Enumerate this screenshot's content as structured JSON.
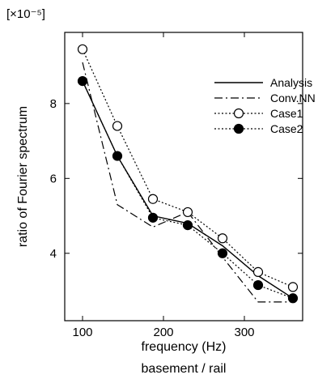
{
  "chart_data": {
    "type": "line",
    "scale_label": "[×10⁻⁵]",
    "xlabel": "frequency (Hz)",
    "ylabel": "ratio of Fourier spectrum",
    "caption": "basement / rail",
    "xlim": [
      78,
      372
    ],
    "ylim": [
      2.2,
      9.9
    ],
    "xticks": [
      100,
      200,
      300
    ],
    "yticks": [
      4,
      6,
      8
    ],
    "grid": false,
    "legend_position": "top-right",
    "series": [
      {
        "name": "Analysis",
        "style": "solid",
        "marker": "none",
        "x": [
          100,
          143,
          187,
          230,
          273,
          317,
          360
        ],
        "y": [
          8.6,
          6.6,
          5.0,
          4.8,
          4.2,
          3.4,
          2.8
        ]
      },
      {
        "name": "Conv.NN",
        "style": "dashdot",
        "marker": "none",
        "x": [
          100,
          143,
          187,
          230,
          273,
          317,
          360
        ],
        "y": [
          9.1,
          5.3,
          4.7,
          5.1,
          3.9,
          2.7,
          2.7
        ]
      },
      {
        "name": "Case1",
        "style": "dotted",
        "marker": "open-circle",
        "x": [
          100,
          143,
          187,
          230,
          273,
          317,
          360
        ],
        "y": [
          9.45,
          7.4,
          5.45,
          5.1,
          4.4,
          3.5,
          3.1
        ]
      },
      {
        "name": "Case2",
        "style": "dotted",
        "marker": "filled-circle",
        "x": [
          100,
          143,
          187,
          230,
          273,
          317,
          360
        ],
        "y": [
          8.6,
          6.6,
          4.95,
          4.75,
          4.0,
          3.15,
          2.8
        ]
      }
    ]
  }
}
